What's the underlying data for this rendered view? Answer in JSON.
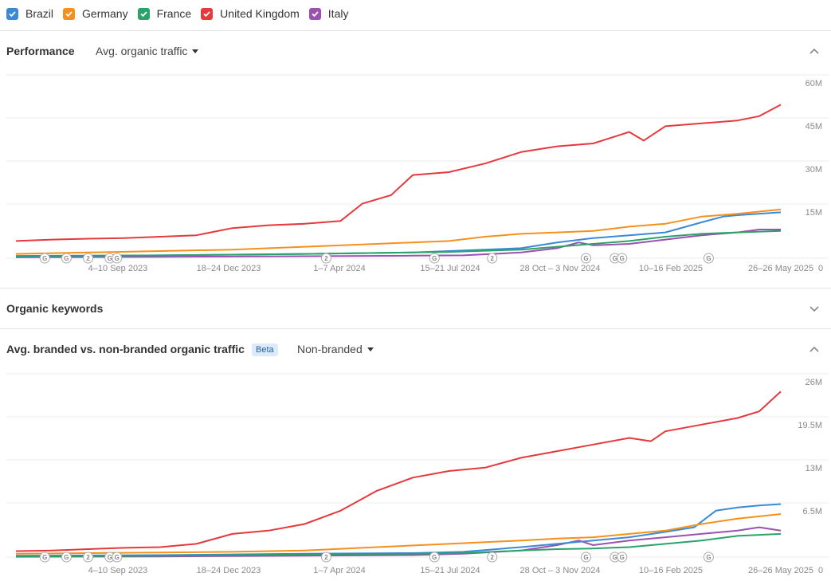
{
  "legend": {
    "items": [
      {
        "label": "Brazil",
        "color": "#3b8ad8"
      },
      {
        "label": "Germany",
        "color": "#f5901e"
      },
      {
        "label": "France",
        "color": "#2ba26a"
      },
      {
        "label": "United Kingdom",
        "color": "#e5393d"
      },
      {
        "label": "Italy",
        "color": "#9b51b0"
      }
    ]
  },
  "performance": {
    "title": "Performance",
    "metric_label": "Avg. organic traffic",
    "collapse_icon": "chevron-up-icon"
  },
  "organic_keywords": {
    "title": "Organic keywords",
    "expand_icon": "chevron-down-icon"
  },
  "branded": {
    "title": "Avg. branded vs. non-branded organic traffic",
    "badge": "Beta",
    "metric_label": "Non-branded",
    "collapse_icon": "chevron-up-icon"
  },
  "x_tick_labels": [
    "4–10 Sep 2023",
    "18–24 Dec 2023",
    "1–7 Apr 2024",
    "15–21 Jul 2024",
    "28 Oct – 3 Nov 2024",
    "10–16 Feb 2025",
    "26–26 May 2025"
  ],
  "x_end_label": "0",
  "markers": [
    {
      "label": "G",
      "week": 3
    },
    {
      "label": "G",
      "week": 6
    },
    {
      "label": "2",
      "week": 9
    },
    {
      "label": "G",
      "week": 12
    },
    {
      "label": "G",
      "week": 13
    },
    {
      "label": "2",
      "week": 42
    },
    {
      "label": "G",
      "week": 57
    },
    {
      "label": "2",
      "week": 65
    },
    {
      "label": "G",
      "week": 78
    },
    {
      "label": "G",
      "week": 82
    },
    {
      "label": "G",
      "week": 83
    },
    {
      "label": "G",
      "week": 95
    }
  ],
  "chart_data": [
    {
      "type": "line",
      "ylim": [
        0,
        60000000
      ],
      "y_tick_labels": [
        "60M",
        "45M",
        "30M",
        "15M"
      ],
      "y_tick_values": [
        60000000,
        45000000,
        30000000,
        15000000
      ],
      "x_weeks": 106,
      "series": [
        {
          "name": "United Kingdom",
          "color": "#e5393d",
          "points": [
            [
              0,
              6.0
            ],
            [
              5,
              6.5
            ],
            [
              10,
              6.8
            ],
            [
              15,
              7.0
            ],
            [
              20,
              7.5
            ],
            [
              25,
              8.0
            ],
            [
              30,
              10.5
            ],
            [
              35,
              11.5
            ],
            [
              40,
              12.0
            ],
            [
              45,
              13.0
            ],
            [
              48,
              19.0
            ],
            [
              52,
              22.0
            ],
            [
              55,
              29.0
            ],
            [
              60,
              30.0
            ],
            [
              65,
              33.0
            ],
            [
              70,
              37.0
            ],
            [
              75,
              39.0
            ],
            [
              80,
              40.0
            ],
            [
              85,
              44.0
            ],
            [
              87,
              41.0
            ],
            [
              90,
              46.0
            ],
            [
              95,
              47.0
            ],
            [
              100,
              48.0
            ],
            [
              103,
              49.5
            ],
            [
              106,
              53.5
            ]
          ]
        },
        {
          "name": "Germany",
          "color": "#f5901e",
          "points": [
            [
              0,
              1.5
            ],
            [
              10,
              2.0
            ],
            [
              20,
              2.5
            ],
            [
              30,
              3.0
            ],
            [
              40,
              4.0
            ],
            [
              50,
              5.0
            ],
            [
              60,
              6.0
            ],
            [
              65,
              7.5
            ],
            [
              70,
              8.5
            ],
            [
              75,
              9.0
            ],
            [
              80,
              9.5
            ],
            [
              85,
              11.0
            ],
            [
              90,
              12.0
            ],
            [
              95,
              14.5
            ],
            [
              100,
              15.5
            ],
            [
              106,
              17.0
            ]
          ]
        },
        {
          "name": "Brazil",
          "color": "#3b8ad8",
          "points": [
            [
              0,
              0.5
            ],
            [
              20,
              1.0
            ],
            [
              40,
              1.5
            ],
            [
              55,
              2.0
            ],
            [
              60,
              2.5
            ],
            [
              70,
              3.5
            ],
            [
              75,
              5.5
            ],
            [
              80,
              7.0
            ],
            [
              85,
              8.0
            ],
            [
              90,
              9.0
            ],
            [
              95,
              12.5
            ],
            [
              98,
              14.5
            ],
            [
              100,
              15.0
            ],
            [
              106,
              16.0
            ]
          ]
        },
        {
          "name": "France",
          "color": "#2ba26a",
          "points": [
            [
              0,
              0.8
            ],
            [
              20,
              1.0
            ],
            [
              40,
              1.5
            ],
            [
              55,
              2.0
            ],
            [
              60,
              2.2
            ],
            [
              70,
              3.0
            ],
            [
              75,
              4.0
            ],
            [
              80,
              5.0
            ],
            [
              85,
              6.0
            ],
            [
              90,
              7.5
            ],
            [
              95,
              8.5
            ],
            [
              100,
              9.0
            ],
            [
              106,
              9.5
            ]
          ]
        },
        {
          "name": "Italy",
          "color": "#9b51b0",
          "points": [
            [
              0,
              0.3
            ],
            [
              20,
              0.5
            ],
            [
              40,
              0.7
            ],
            [
              55,
              0.9
            ],
            [
              62,
              1.0
            ],
            [
              70,
              2.0
            ],
            [
              75,
              3.5
            ],
            [
              78,
              5.5
            ],
            [
              80,
              4.5
            ],
            [
              85,
              5.0
            ],
            [
              90,
              6.5
            ],
            [
              95,
              8.0
            ],
            [
              100,
              9.0
            ],
            [
              103,
              10.0
            ],
            [
              106,
              10.0
            ]
          ]
        }
      ]
    },
    {
      "type": "line",
      "ylim": [
        0,
        26000000
      ],
      "y_tick_labels": [
        "26M",
        "19.5M",
        "13M",
        "6.5M"
      ],
      "y_tick_values": [
        26000000,
        19500000,
        13000000,
        6500000
      ],
      "x_weeks": 106,
      "series": [
        {
          "name": "United Kingdom",
          "color": "#e5393d",
          "points": [
            [
              0,
              0.9
            ],
            [
              5,
              1.0
            ],
            [
              10,
              1.2
            ],
            [
              15,
              1.4
            ],
            [
              20,
              1.5
            ],
            [
              25,
              2.0
            ],
            [
              30,
              3.5
            ],
            [
              35,
              4.0
            ],
            [
              40,
              5.0
            ],
            [
              45,
              7.0
            ],
            [
              50,
              10.0
            ],
            [
              55,
              12.0
            ],
            [
              60,
              13.0
            ],
            [
              65,
              13.5
            ],
            [
              70,
              15.0
            ],
            [
              75,
              16.0
            ],
            [
              80,
              17.0
            ],
            [
              85,
              18.0
            ],
            [
              88,
              17.5
            ],
            [
              90,
              19.0
            ],
            [
              95,
              20.0
            ],
            [
              100,
              21.0
            ],
            [
              103,
              22.0
            ],
            [
              106,
              25.0
            ]
          ]
        },
        {
          "name": "Germany",
          "color": "#f5901e",
          "points": [
            [
              0,
              0.5
            ],
            [
              10,
              0.6
            ],
            [
              20,
              0.7
            ],
            [
              30,
              0.8
            ],
            [
              40,
              1.0
            ],
            [
              50,
              1.5
            ],
            [
              60,
              2.0
            ],
            [
              70,
              2.5
            ],
            [
              75,
              2.8
            ],
            [
              80,
              3.0
            ],
            [
              85,
              3.5
            ],
            [
              90,
              4.0
            ],
            [
              95,
              5.0
            ],
            [
              100,
              5.8
            ],
            [
              106,
              6.5
            ]
          ]
        },
        {
          "name": "Brazil",
          "color": "#3b8ad8",
          "points": [
            [
              0,
              0.2
            ],
            [
              20,
              0.3
            ],
            [
              40,
              0.5
            ],
            [
              55,
              0.6
            ],
            [
              62,
              0.8
            ],
            [
              70,
              1.5
            ],
            [
              75,
              2.0
            ],
            [
              80,
              2.5
            ],
            [
              85,
              3.0
            ],
            [
              90,
              3.8
            ],
            [
              94,
              4.5
            ],
            [
              97,
              7.0
            ],
            [
              100,
              7.5
            ],
            [
              103,
              7.8
            ],
            [
              106,
              8.0
            ]
          ]
        },
        {
          "name": "France",
          "color": "#2ba26a",
          "points": [
            [
              0,
              0.1
            ],
            [
              20,
              0.2
            ],
            [
              40,
              0.4
            ],
            [
              55,
              0.5
            ],
            [
              62,
              0.6
            ],
            [
              70,
              1.0
            ],
            [
              75,
              1.2
            ],
            [
              80,
              1.3
            ],
            [
              85,
              1.5
            ],
            [
              90,
              2.0
            ],
            [
              95,
              2.5
            ],
            [
              100,
              3.2
            ],
            [
              106,
              3.5
            ]
          ]
        },
        {
          "name": "Italy",
          "color": "#9b51b0",
          "points": [
            [
              0,
              0.05
            ],
            [
              20,
              0.1
            ],
            [
              40,
              0.2
            ],
            [
              55,
              0.3
            ],
            [
              62,
              0.5
            ],
            [
              70,
              1.0
            ],
            [
              75,
              1.8
            ],
            [
              78,
              2.5
            ],
            [
              80,
              1.8
            ],
            [
              85,
              2.5
            ],
            [
              90,
              3.0
            ],
            [
              95,
              3.5
            ],
            [
              100,
              4.0
            ],
            [
              103,
              4.5
            ],
            [
              106,
              4.0
            ]
          ]
        }
      ]
    }
  ]
}
